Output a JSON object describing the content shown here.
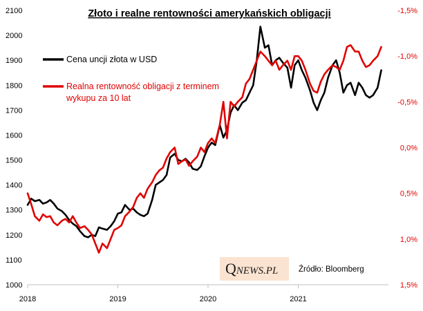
{
  "chart_data": {
    "type": "line",
    "title": "Złoto i realne rentowności amerykańskich obligacji",
    "x_ticks": [
      "2018",
      "2019",
      "2020",
      "2021"
    ],
    "y_left_ticks": [
      "1000",
      "1100",
      "1200",
      "1300",
      "1400",
      "1500",
      "1600",
      "1700",
      "1800",
      "1900",
      "2000",
      "2100"
    ],
    "y_left_range": [
      1000,
      2100
    ],
    "y_right_ticks": [
      "-1,5%",
      "-1,0%",
      "-0,5%",
      "0,0%",
      "0,5%",
      "1,0%",
      "1,5%"
    ],
    "y_right_range": [
      1.5,
      -1.5
    ],
    "y_right_inverted": true,
    "legend_position": "top-left",
    "series": [
      {
        "name": "Cena uncji złota w USD",
        "axis": "left",
        "color": "#000000",
        "points": [
          [
            2018.0,
            1320
          ],
          [
            2018.04,
            1345
          ],
          [
            2018.08,
            1335
          ],
          [
            2018.13,
            1340
          ],
          [
            2018.17,
            1325
          ],
          [
            2018.21,
            1330
          ],
          [
            2018.25,
            1340
          ],
          [
            2018.29,
            1325
          ],
          [
            2018.33,
            1305
          ],
          [
            2018.38,
            1295
          ],
          [
            2018.42,
            1280
          ],
          [
            2018.46,
            1260
          ],
          [
            2018.5,
            1245
          ],
          [
            2018.54,
            1235
          ],
          [
            2018.58,
            1215
          ],
          [
            2018.63,
            1195
          ],
          [
            2018.67,
            1190
          ],
          [
            2018.71,
            1200
          ],
          [
            2018.75,
            1195
          ],
          [
            2018.79,
            1230
          ],
          [
            2018.83,
            1225
          ],
          [
            2018.88,
            1220
          ],
          [
            2018.92,
            1235
          ],
          [
            2018.96,
            1255
          ],
          [
            2019.0,
            1285
          ],
          [
            2019.04,
            1290
          ],
          [
            2019.08,
            1320
          ],
          [
            2019.13,
            1300
          ],
          [
            2019.17,
            1305
          ],
          [
            2019.21,
            1290
          ],
          [
            2019.25,
            1280
          ],
          [
            2019.29,
            1275
          ],
          [
            2019.33,
            1285
          ],
          [
            2019.38,
            1340
          ],
          [
            2019.42,
            1400
          ],
          [
            2019.46,
            1410
          ],
          [
            2019.5,
            1420
          ],
          [
            2019.54,
            1440
          ],
          [
            2019.58,
            1510
          ],
          [
            2019.63,
            1525
          ],
          [
            2019.67,
            1500
          ],
          [
            2019.71,
            1495
          ],
          [
            2019.75,
            1505
          ],
          [
            2019.79,
            1490
          ],
          [
            2019.83,
            1465
          ],
          [
            2019.88,
            1460
          ],
          [
            2019.92,
            1475
          ],
          [
            2019.96,
            1515
          ],
          [
            2020.0,
            1550
          ],
          [
            2020.04,
            1570
          ],
          [
            2020.08,
            1560
          ],
          [
            2020.13,
            1640
          ],
          [
            2020.17,
            1590
          ],
          [
            2020.21,
            1620
          ],
          [
            2020.25,
            1690
          ],
          [
            2020.29,
            1720
          ],
          [
            2020.33,
            1700
          ],
          [
            2020.38,
            1730
          ],
          [
            2020.42,
            1740
          ],
          [
            2020.46,
            1770
          ],
          [
            2020.5,
            1800
          ],
          [
            2020.54,
            1900
          ],
          [
            2020.58,
            2035
          ],
          [
            2020.63,
            1950
          ],
          [
            2020.67,
            1960
          ],
          [
            2020.71,
            1880
          ],
          [
            2020.75,
            1900
          ],
          [
            2020.79,
            1910
          ],
          [
            2020.83,
            1890
          ],
          [
            2020.88,
            1870
          ],
          [
            2020.92,
            1790
          ],
          [
            2020.96,
            1880
          ],
          [
            2021.0,
            1900
          ],
          [
            2021.04,
            1860
          ],
          [
            2021.08,
            1830
          ],
          [
            2021.13,
            1780
          ],
          [
            2021.17,
            1730
          ],
          [
            2021.21,
            1700
          ],
          [
            2021.25,
            1740
          ],
          [
            2021.29,
            1770
          ],
          [
            2021.33,
            1830
          ],
          [
            2021.38,
            1880
          ],
          [
            2021.42,
            1900
          ],
          [
            2021.46,
            1850
          ],
          [
            2021.5,
            1770
          ],
          [
            2021.54,
            1800
          ],
          [
            2021.58,
            1810
          ],
          [
            2021.63,
            1760
          ],
          [
            2021.67,
            1810
          ],
          [
            2021.71,
            1790
          ],
          [
            2021.75,
            1760
          ],
          [
            2021.79,
            1750
          ],
          [
            2021.83,
            1760
          ],
          [
            2021.88,
            1790
          ],
          [
            2021.92,
            1860
          ]
        ]
      },
      {
        "name": "Realna rentowność obligacji z terminem wykupu za 10 lat",
        "axis": "right",
        "color": "#e00000",
        "points": [
          [
            2018.0,
            0.5
          ],
          [
            2018.04,
            0.62
          ],
          [
            2018.08,
            0.75
          ],
          [
            2018.13,
            0.8
          ],
          [
            2018.17,
            0.73
          ],
          [
            2018.21,
            0.76
          ],
          [
            2018.25,
            0.75
          ],
          [
            2018.29,
            0.82
          ],
          [
            2018.33,
            0.85
          ],
          [
            2018.38,
            0.8
          ],
          [
            2018.42,
            0.78
          ],
          [
            2018.46,
            0.82
          ],
          [
            2018.5,
            0.75
          ],
          [
            2018.54,
            0.82
          ],
          [
            2018.58,
            0.88
          ],
          [
            2018.63,
            0.86
          ],
          [
            2018.67,
            0.9
          ],
          [
            2018.71,
            0.95
          ],
          [
            2018.75,
            1.05
          ],
          [
            2018.79,
            1.15
          ],
          [
            2018.83,
            1.05
          ],
          [
            2018.88,
            1.1
          ],
          [
            2018.92,
            1.0
          ],
          [
            2018.96,
            0.9
          ],
          [
            2019.0,
            0.88
          ],
          [
            2019.04,
            0.85
          ],
          [
            2019.08,
            0.75
          ],
          [
            2019.13,
            0.7
          ],
          [
            2019.17,
            0.65
          ],
          [
            2019.21,
            0.55
          ],
          [
            2019.25,
            0.5
          ],
          [
            2019.29,
            0.55
          ],
          [
            2019.33,
            0.45
          ],
          [
            2019.38,
            0.38
          ],
          [
            2019.42,
            0.3
          ],
          [
            2019.46,
            0.25
          ],
          [
            2019.5,
            0.22
          ],
          [
            2019.54,
            0.12
          ],
          [
            2019.58,
            0.05
          ],
          [
            2019.63,
            0.0
          ],
          [
            2019.67,
            0.18
          ],
          [
            2019.71,
            0.15
          ],
          [
            2019.75,
            0.13
          ],
          [
            2019.79,
            0.2
          ],
          [
            2019.83,
            0.15
          ],
          [
            2019.88,
            0.1
          ],
          [
            2019.92,
            0.0
          ],
          [
            2019.96,
            0.05
          ],
          [
            2020.0,
            -0.05
          ],
          [
            2020.04,
            -0.1
          ],
          [
            2020.08,
            -0.05
          ],
          [
            2020.13,
            -0.25
          ],
          [
            2020.17,
            -0.5
          ],
          [
            2020.21,
            -0.1
          ],
          [
            2020.25,
            -0.5
          ],
          [
            2020.29,
            -0.45
          ],
          [
            2020.33,
            -0.5
          ],
          [
            2020.38,
            -0.55
          ],
          [
            2020.42,
            -0.7
          ],
          [
            2020.46,
            -0.75
          ],
          [
            2020.5,
            -0.85
          ],
          [
            2020.54,
            -0.95
          ],
          [
            2020.58,
            -1.05
          ],
          [
            2020.63,
            -1.0
          ],
          [
            2020.67,
            -0.95
          ],
          [
            2020.71,
            -0.9
          ],
          [
            2020.75,
            -0.95
          ],
          [
            2020.79,
            -0.85
          ],
          [
            2020.83,
            -0.9
          ],
          [
            2020.88,
            -0.95
          ],
          [
            2020.92,
            -0.85
          ],
          [
            2020.96,
            -1.0
          ],
          [
            2021.0,
            -1.0
          ],
          [
            2021.04,
            -0.95
          ],
          [
            2021.08,
            -0.85
          ],
          [
            2021.13,
            -0.7
          ],
          [
            2021.17,
            -0.62
          ],
          [
            2021.21,
            -0.6
          ],
          [
            2021.25,
            -0.72
          ],
          [
            2021.29,
            -0.8
          ],
          [
            2021.33,
            -0.85
          ],
          [
            2021.38,
            -0.9
          ],
          [
            2021.42,
            -0.88
          ],
          [
            2021.46,
            -0.85
          ],
          [
            2021.5,
            -0.95
          ],
          [
            2021.54,
            -1.1
          ],
          [
            2021.58,
            -1.12
          ],
          [
            2021.63,
            -1.05
          ],
          [
            2021.67,
            -1.05
          ],
          [
            2021.71,
            -0.95
          ],
          [
            2021.75,
            -0.88
          ],
          [
            2021.79,
            -0.9
          ],
          [
            2021.83,
            -0.95
          ],
          [
            2021.88,
            -1.0
          ],
          [
            2021.92,
            -1.1
          ]
        ]
      }
    ]
  },
  "logo": {
    "text": "QNEWS.PL"
  },
  "source": "Źródło: Bloomberg",
  "colors": {
    "gold_line": "#000000",
    "yield_line": "#e00000",
    "right_axis_text": "#e00000",
    "logo_bg": "#fbe3d1"
  }
}
